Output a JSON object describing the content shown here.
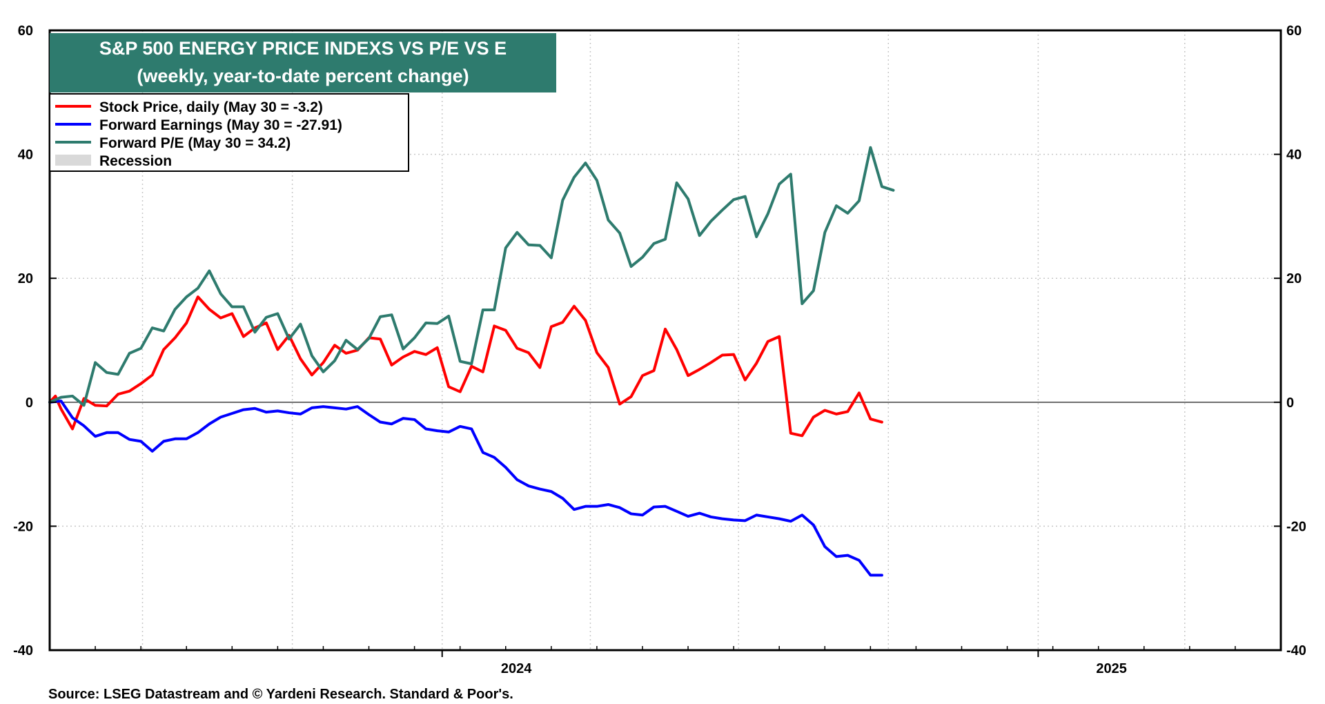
{
  "chart_data": {
    "type": "line",
    "title": "S&P 500 ENERGY PRICE INDEXS VS P/E VS E",
    "subtitle": "(weekly, year-to-date percent change)",
    "xlabel": "",
    "ylabel": "",
    "ylim": [
      -40,
      60
    ],
    "yticks": [
      -40,
      -20,
      0,
      20,
      40,
      60
    ],
    "x_tick_labels": [
      "2024",
      "2025"
    ],
    "grid": true,
    "legend_position": "top-left",
    "legend": [
      {
        "label": "Stock Price, daily (May 30 = -3.2)",
        "color": "#ff0000",
        "type": "line"
      },
      {
        "label": "Forward Earnings (May 30 = -27.91)",
        "color": "#0000ff",
        "type": "line"
      },
      {
        "label": "Forward P/E (May 30 = 34.2)",
        "color": "#2e7b6e",
        "type": "line"
      },
      {
        "label": "Recession",
        "color": "#d9d9d9",
        "type": "box"
      }
    ],
    "x": [
      "2023-05-05",
      "2023-05-12",
      "2023-05-19",
      "2023-05-26",
      "2023-06-02",
      "2023-06-09",
      "2023-06-16",
      "2023-06-23",
      "2023-06-30",
      "2023-07-07",
      "2023-07-14",
      "2023-07-21",
      "2023-07-28",
      "2023-08-04",
      "2023-08-11",
      "2023-08-18",
      "2023-08-25",
      "2023-09-01",
      "2023-09-08",
      "2023-09-15",
      "2023-09-22",
      "2023-09-29",
      "2023-10-06",
      "2023-10-13",
      "2023-10-20",
      "2023-10-27",
      "2023-11-03",
      "2023-11-10",
      "2023-11-17",
      "2023-11-24",
      "2023-12-01",
      "2023-12-08",
      "2023-12-15",
      "2023-12-22",
      "2023-12-29",
      "2024-01-05",
      "2024-01-12",
      "2024-01-19",
      "2024-01-26",
      "2024-02-02",
      "2024-02-09",
      "2024-02-16",
      "2024-02-23",
      "2024-03-01",
      "2024-03-08",
      "2024-03-15",
      "2024-03-22",
      "2024-03-29",
      "2024-04-05",
      "2024-04-12",
      "2024-04-19",
      "2024-04-26",
      "2024-05-03",
      "2024-05-10",
      "2024-05-17",
      "2024-05-24",
      "2024-05-31",
      "2024-06-07",
      "2024-06-14",
      "2024-06-21",
      "2024-06-28",
      "2024-07-05",
      "2024-07-12",
      "2024-07-19",
      "2024-07-26",
      "2024-08-02",
      "2024-08-09",
      "2024-08-16",
      "2024-08-23",
      "2024-08-30",
      "2024-09-06",
      "2024-09-13",
      "2024-09-20",
      "2024-09-27",
      "2024-10-04",
      "2024-10-11",
      "2024-10-18",
      "2024-10-25",
      "2024-11-01",
      "2024-11-08",
      "2024-11-15",
      "2024-11-22",
      "2024-11-29",
      "2024-12-06",
      "2024-12-13",
      "2024-12-20",
      "2024-12-27",
      "2025-01-03",
      "2025-01-10",
      "2025-01-17",
      "2025-01-24",
      "2025-01-31",
      "2025-02-07",
      "2025-02-14",
      "2025-02-21",
      "2025-02-28",
      "2025-03-07",
      "2025-03-14",
      "2025-03-21",
      "2025-03-28",
      "2025-04-04",
      "2025-04-11",
      "2025-04-18",
      "2025-04-25",
      "2025-05-02",
      "2025-05-09",
      "2025-05-16",
      "2025-05-23",
      "2025-05-30"
    ],
    "series": [
      {
        "name": "Stock Price, daily (May 30 = -3.2)",
        "color": "#ff0000",
        "points": [
          [
            0,
            0
          ],
          [
            9.2,
            1.0
          ],
          [
            18.4,
            -1.1
          ],
          [
            36.8,
            -4.3
          ],
          [
            55.3,
            0.6
          ],
          [
            73.7,
            -0.5
          ],
          [
            92.1,
            -0.6
          ],
          [
            110.5,
            1.3
          ],
          [
            128.9,
            1.8
          ],
          [
            147.4,
            3.0
          ],
          [
            165.8,
            4.4
          ],
          [
            184.2,
            8.5
          ],
          [
            202.6,
            10.4
          ],
          [
            221.1,
            12.8
          ],
          [
            239.5,
            17.0
          ],
          [
            257.9,
            15.0
          ],
          [
            276.3,
            13.6
          ],
          [
            294.7,
            14.3
          ],
          [
            313.2,
            10.6
          ],
          [
            331.6,
            12.0
          ],
          [
            350,
            12.8
          ],
          [
            368.4,
            8.5
          ],
          [
            386.8,
            10.8
          ],
          [
            405.3,
            7.0
          ],
          [
            423.7,
            4.4
          ],
          [
            442.1,
            6.4
          ],
          [
            460.5,
            9.2
          ],
          [
            478.9,
            7.9
          ],
          [
            497.4,
            8.4
          ],
          [
            515.8,
            10.4
          ],
          [
            534.2,
            10.2
          ],
          [
            552.6,
            6.0
          ],
          [
            571.1,
            7.3
          ],
          [
            589.5,
            8.2
          ],
          [
            607.9,
            7.7
          ],
          [
            626.3,
            8.8
          ],
          [
            644.7,
            2.5
          ],
          [
            663.2,
            1.7
          ],
          [
            681.6,
            5.8
          ],
          [
            700,
            4.9
          ],
          [
            718.4,
            12.3
          ],
          [
            736.8,
            11.6
          ],
          [
            755.3,
            8.7
          ],
          [
            773.7,
            8.0
          ],
          [
            792.1,
            5.6
          ],
          [
            810.5,
            12.2
          ],
          [
            828.9,
            12.9
          ],
          [
            847.4,
            15.5
          ],
          [
            865.8,
            13.2
          ],
          [
            884.2,
            8.0
          ],
          [
            902.6,
            5.6
          ],
          [
            921.1,
            -0.3
          ],
          [
            939.5,
            0.9
          ],
          [
            957.9,
            4.3
          ],
          [
            976.3,
            5.1
          ],
          [
            994.7,
            11.8
          ],
          [
            1013.2,
            8.5
          ],
          [
            1031.6,
            4.3
          ],
          [
            1050,
            5.3
          ],
          [
            1068.4,
            6.4
          ],
          [
            1086.8,
            7.6
          ],
          [
            1105.3,
            7.7
          ],
          [
            1123.7,
            3.6
          ],
          [
            1142.1,
            6.3
          ],
          [
            1160.5,
            9.8
          ],
          [
            1178.9,
            10.6
          ],
          [
            1197.4,
            -5.0
          ],
          [
            1215.8,
            -5.4
          ],
          [
            1234.2,
            -2.4
          ],
          [
            1252.6,
            -1.3
          ],
          [
            1271.1,
            -1.9
          ],
          [
            1289.5,
            -1.5
          ],
          [
            1307.9,
            1.5
          ],
          [
            1326.3,
            -2.7
          ],
          [
            1344.7,
            -3.2
          ]
        ]
      },
      {
        "name": "Forward Earnings (May 30 = -27.91)",
        "color": "#0000ff",
        "points": [
          [
            0,
            0
          ],
          [
            18.4,
            0.2
          ],
          [
            36.8,
            -2.5
          ],
          [
            55.3,
            -3.8
          ],
          [
            73.7,
            -5.5
          ],
          [
            92.1,
            -4.9
          ],
          [
            110.5,
            -4.9
          ],
          [
            128.9,
            -6.0
          ],
          [
            147.4,
            -6.3
          ],
          [
            165.8,
            -7.9
          ],
          [
            184.2,
            -6.3
          ],
          [
            202.6,
            -5.9
          ],
          [
            221.1,
            -5.9
          ],
          [
            239.5,
            -4.9
          ],
          [
            257.9,
            -3.5
          ],
          [
            276.3,
            -2.4
          ],
          [
            294.7,
            -1.8
          ],
          [
            313.2,
            -1.2
          ],
          [
            331.6,
            -1.0
          ],
          [
            350,
            -1.6
          ],
          [
            368.4,
            -1.4
          ],
          [
            386.8,
            -1.7
          ],
          [
            405.3,
            -1.9
          ],
          [
            423.7,
            -0.9
          ],
          [
            442.1,
            -0.7
          ],
          [
            460.5,
            -0.9
          ],
          [
            478.9,
            -1.1
          ],
          [
            497.4,
            -0.7
          ],
          [
            515.8,
            -2.0
          ],
          [
            534.2,
            -3.2
          ],
          [
            552.6,
            -3.5
          ],
          [
            571.1,
            -2.6
          ],
          [
            589.5,
            -2.8
          ],
          [
            607.9,
            -4.3
          ],
          [
            626.3,
            -4.6
          ],
          [
            644.7,
            -4.8
          ],
          [
            663.2,
            -3.9
          ],
          [
            681.6,
            -4.3
          ],
          [
            700,
            -8.1
          ],
          [
            718.4,
            -8.9
          ],
          [
            736.8,
            -10.5
          ],
          [
            755.3,
            -12.5
          ],
          [
            773.7,
            -13.5
          ],
          [
            792.1,
            -14.0
          ],
          [
            810.5,
            -14.4
          ],
          [
            828.9,
            -15.5
          ],
          [
            847.4,
            -17.3
          ],
          [
            865.8,
            -16.8
          ],
          [
            884.2,
            -16.8
          ],
          [
            902.6,
            -16.5
          ],
          [
            921.1,
            -17.0
          ],
          [
            939.5,
            -18.0
          ],
          [
            957.9,
            -18.2
          ],
          [
            976.3,
            -16.9
          ],
          [
            994.7,
            -16.8
          ],
          [
            1013.2,
            -17.6
          ],
          [
            1031.6,
            -18.4
          ],
          [
            1050,
            -17.9
          ],
          [
            1068.4,
            -18.5
          ],
          [
            1086.8,
            -18.8
          ],
          [
            1105.3,
            -19.0
          ],
          [
            1123.7,
            -19.1
          ],
          [
            1142.1,
            -18.2
          ],
          [
            1160.5,
            -18.5
          ],
          [
            1178.9,
            -18.8
          ],
          [
            1197.4,
            -19.2
          ],
          [
            1215.8,
            -18.2
          ],
          [
            1234.2,
            -19.8
          ],
          [
            1252.6,
            -23.3
          ],
          [
            1271.1,
            -24.9
          ],
          [
            1289.5,
            -24.7
          ],
          [
            1307.9,
            -25.5
          ],
          [
            1326.3,
            -27.9
          ],
          [
            1344.7,
            -27.9
          ]
        ]
      },
      {
        "name": "Forward P/E (May 30 = 34.2)",
        "color": "#2e7b6e",
        "points": [
          [
            0,
            0
          ],
          [
            18.4,
            0.8
          ],
          [
            36.8,
            1.0
          ],
          [
            55.3,
            -0.5
          ],
          [
            73.7,
            6.4
          ],
          [
            92.1,
            4.8
          ],
          [
            110.5,
            4.5
          ],
          [
            128.9,
            7.9
          ],
          [
            147.4,
            8.7
          ],
          [
            165.8,
            12.0
          ],
          [
            184.2,
            11.5
          ],
          [
            202.6,
            15.0
          ],
          [
            221.1,
            17.0
          ],
          [
            239.5,
            18.4
          ],
          [
            257.9,
            21.2
          ],
          [
            276.3,
            17.5
          ],
          [
            294.7,
            15.4
          ],
          [
            313.2,
            15.4
          ],
          [
            331.6,
            11.3
          ],
          [
            350,
            13.7
          ],
          [
            368.4,
            14.3
          ],
          [
            386.8,
            10.2
          ],
          [
            405.3,
            12.6
          ],
          [
            423.7,
            7.5
          ],
          [
            442.1,
            4.9
          ],
          [
            460.5,
            6.7
          ],
          [
            478.9,
            10.0
          ],
          [
            497.4,
            8.5
          ],
          [
            515.8,
            10.3
          ],
          [
            534.2,
            13.8
          ],
          [
            552.6,
            14.1
          ],
          [
            571.1,
            8.6
          ],
          [
            589.5,
            10.4
          ],
          [
            607.9,
            12.8
          ],
          [
            626.3,
            12.7
          ],
          [
            644.7,
            13.9
          ],
          [
            663.2,
            6.6
          ],
          [
            681.6,
            6.2
          ],
          [
            700,
            14.9
          ],
          [
            718.4,
            14.9
          ],
          [
            736.8,
            24.9
          ],
          [
            755.3,
            27.4
          ],
          [
            773.7,
            25.4
          ],
          [
            792.1,
            25.3
          ],
          [
            810.5,
            23.3
          ],
          [
            828.9,
            32.6
          ],
          [
            847.4,
            36.3
          ],
          [
            865.8,
            38.6
          ],
          [
            884.2,
            35.8
          ],
          [
            902.6,
            29.4
          ],
          [
            921.1,
            27.3
          ],
          [
            939.5,
            21.9
          ],
          [
            957.9,
            23.4
          ],
          [
            976.3,
            25.6
          ],
          [
            994.7,
            26.3
          ],
          [
            1013.2,
            35.4
          ],
          [
            1031.6,
            32.8
          ],
          [
            1050,
            26.9
          ],
          [
            1068.4,
            29.2
          ],
          [
            1086.8,
            31.0
          ],
          [
            1105.3,
            32.7
          ],
          [
            1123.7,
            33.2
          ],
          [
            1142.1,
            26.7
          ],
          [
            1160.5,
            30.4
          ],
          [
            1178.9,
            35.2
          ],
          [
            1197.4,
            36.8
          ],
          [
            1215.8,
            15.9
          ],
          [
            1234.2,
            18.0
          ],
          [
            1252.6,
            27.4
          ],
          [
            1271.1,
            31.7
          ],
          [
            1289.5,
            30.5
          ],
          [
            1307.9,
            32.5
          ],
          [
            1326.3,
            41.1
          ],
          [
            1344.7,
            34.8
          ],
          [
            1363.2,
            34.2
          ]
        ]
      }
    ],
    "zero_line": true
  },
  "source": "Source: LSEG Datastream and © Yardeni Research. Standard & Poor's."
}
